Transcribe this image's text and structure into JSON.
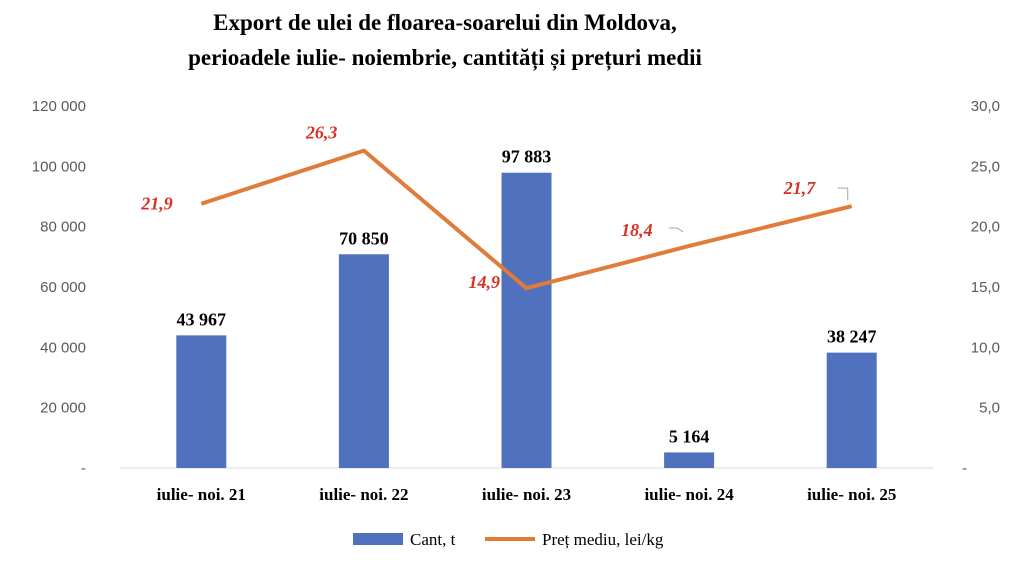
{
  "chart_data": {
    "type": "bar+line",
    "title_lines": [
      "Export de ulei de floarea-soarelui  din  Moldova,",
      "perioadele iulie- noiembrie, cantități și prețuri medii"
    ],
    "categories": [
      "iulie- noi. 21",
      "iulie- noi. 22",
      "iulie- noi. 23",
      "iulie- noi. 24",
      "iulie- noi. 25"
    ],
    "series": [
      {
        "name": "Cant, t",
        "type": "bar",
        "axis": "left",
        "color": "#4f71be",
        "values": [
          43967,
          70850,
          97883,
          5164,
          38247
        ],
        "labels": [
          "43 967",
          "70 850",
          "97 883",
          "5 164",
          "38 247"
        ]
      },
      {
        "name": "Preț mediu, lei/kg",
        "type": "line",
        "axis": "right",
        "color": "#e07b39",
        "label_color": "#d93025",
        "values": [
          21.9,
          26.3,
          14.9,
          18.4,
          21.7
        ],
        "labels": [
          "21,9",
          "26,3",
          "14,9",
          "18,4",
          "21,7"
        ]
      }
    ],
    "left_axis": {
      "ylim": [
        0,
        120000
      ],
      "ticks": [
        "-",
        "20 000",
        "40 000",
        "60 000",
        "80 000",
        "100 000",
        "120 000"
      ]
    },
    "right_axis": {
      "ylim": [
        0,
        30
      ],
      "ticks": [
        "-",
        "5,0",
        "10,0",
        "15,0",
        "20,0",
        "25,0",
        "30,0"
      ]
    },
    "grid": false,
    "legend": "bottom"
  }
}
